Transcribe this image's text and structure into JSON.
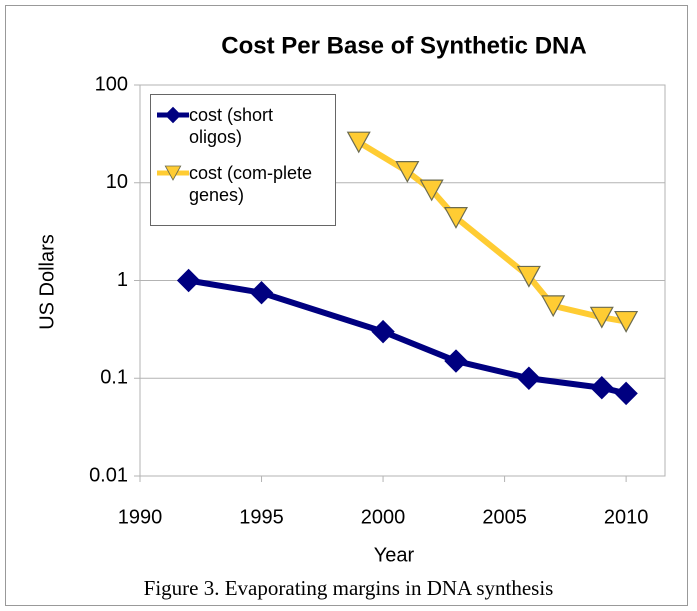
{
  "chart_data": {
    "type": "line",
    "title": "Cost Per Base of Synthetic DNA",
    "x_label": "Year",
    "y_label": "US Dollars",
    "xlim": [
      1990,
      2011.6
    ],
    "xticks": [
      1990,
      1995,
      2000,
      2005,
      2010
    ],
    "ylim": [
      0.01,
      100
    ],
    "yticks": [
      100,
      10,
      1,
      0.1,
      0.01
    ],
    "log_y": true,
    "grid": true,
    "legend": "top-left",
    "series": [
      {
        "name": "cost (short oligos)",
        "color": "#000080",
        "marker": "diamond",
        "x": [
          1992,
          1995,
          2000,
          2003,
          2006,
          2009,
          2010
        ],
        "values": [
          1,
          0.75,
          0.3,
          0.15,
          0.1,
          0.08,
          0.07
        ]
      },
      {
        "name": "cost (com-plete genes)",
        "color": "#ffcc33",
        "marker": "triangle-down",
        "x": [
          1999,
          2001,
          2002,
          2003,
          2006,
          2007,
          2009,
          2010
        ],
        "values": [
          26,
          13,
          8.4,
          4.4,
          1.1,
          0.55,
          0.42,
          0.38
        ]
      }
    ],
    "caption": "Figure 3. Evaporating margins in DNA synthesis"
  }
}
